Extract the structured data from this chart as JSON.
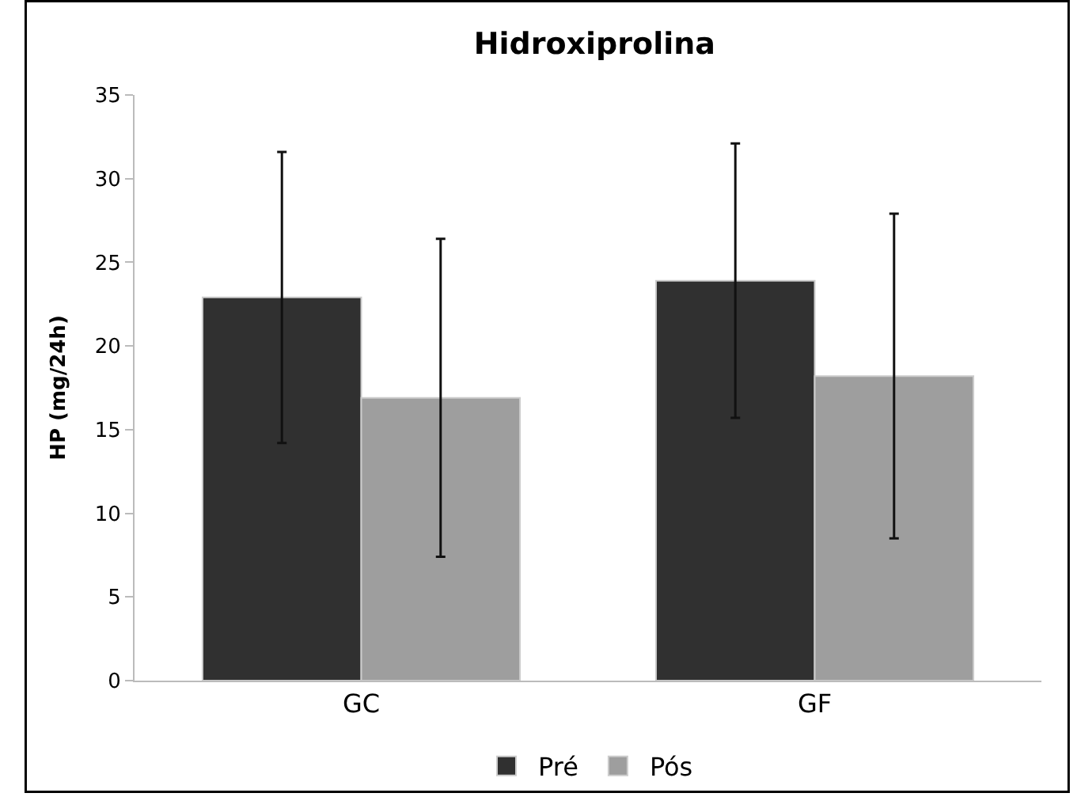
{
  "chart_data": {
    "type": "bar",
    "title": "Hidroxiprolina",
    "ylabel": "HP (mg/24h)",
    "categories": [
      "GC",
      "GF"
    ],
    "series": [
      {
        "name": "Pré",
        "color": "#303030",
        "values": [
          22.9,
          23.9
        ],
        "errors": [
          8.7,
          8.2
        ]
      },
      {
        "name": "Pós",
        "color": "#9e9e9e",
        "values": [
          16.9,
          18.2
        ],
        "errors": [
          9.5,
          9.7
        ]
      }
    ],
    "ylim": [
      0,
      35
    ],
    "yticks": [
      0,
      5,
      10,
      15,
      20,
      25,
      30,
      35
    ],
    "legend": "bottom"
  }
}
